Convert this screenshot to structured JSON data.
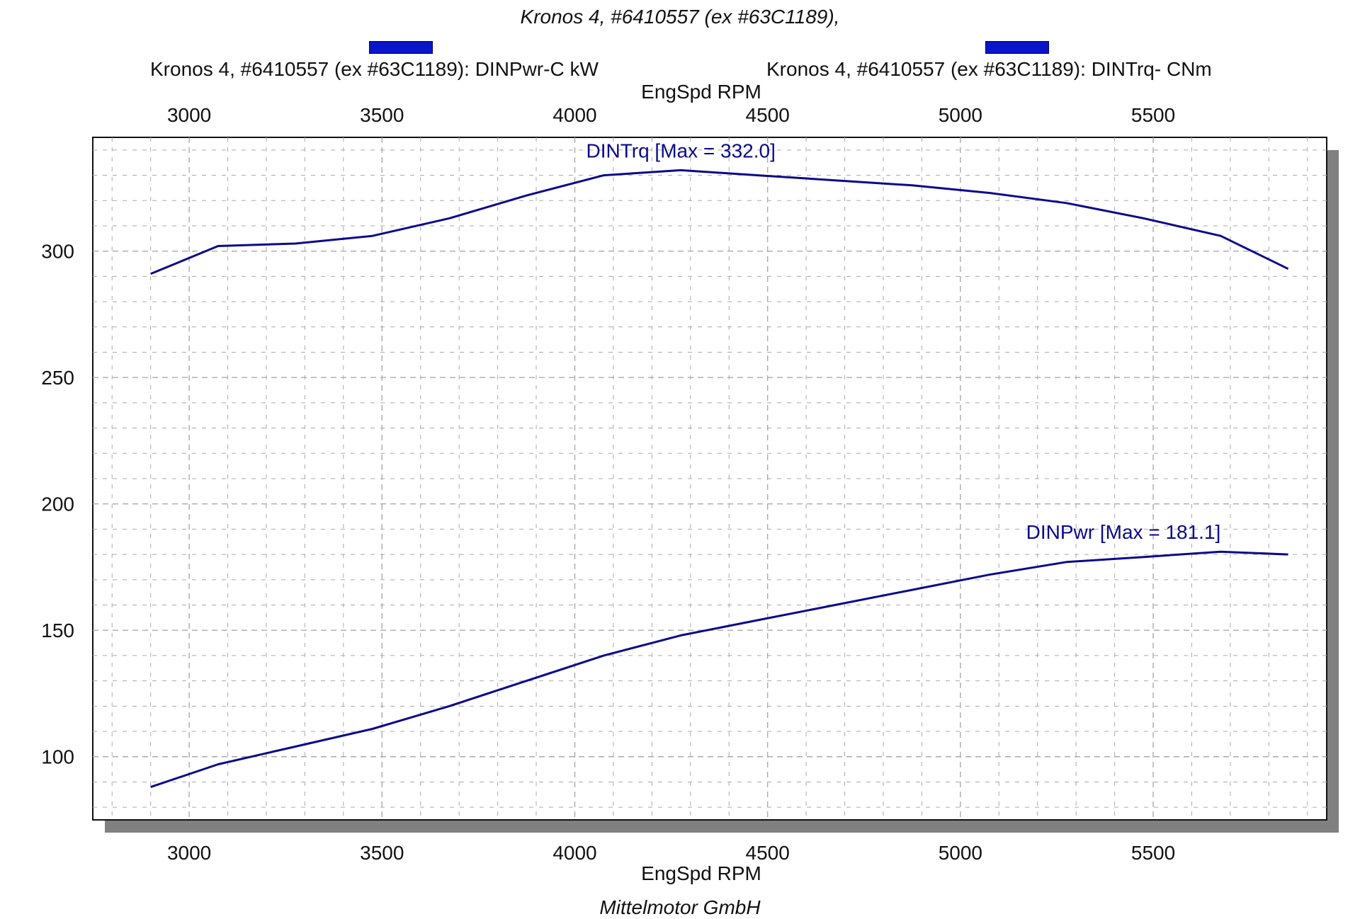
{
  "subtitle": "Kronos 4, #6410557 (ex #63C1189),",
  "footer": "Mittelmotor GmbH",
  "colors": {
    "series": "#0a0a8c",
    "legend": "#0a14c8",
    "grid": "#aaaaaa",
    "shadow": "#808080"
  },
  "chart_data": {
    "type": "line",
    "xlabel": "EngSpd  RPM",
    "x_ticks": [
      3000,
      3500,
      4000,
      4500,
      5000,
      5500
    ],
    "y_ticks": [
      100,
      150,
      200,
      250,
      300
    ],
    "xlim": [
      2750,
      5950
    ],
    "ylim": [
      75,
      345
    ],
    "grid": true,
    "legend_position": "top",
    "series": [
      {
        "name": "Kronos 4, #6410557 (ex #63C1189): DINPwr-C kW",
        "annotation": "DINPwr [Max = 181.1]",
        "x": [
          2900,
          3075,
          3275,
          3475,
          3675,
          3875,
          4075,
          4275,
          4475,
          4675,
          4875,
          5075,
          5275,
          5475,
          5675,
          5850
        ],
        "y": [
          88,
          97,
          104,
          111,
          120,
          130,
          140,
          148,
          154,
          160,
          166,
          172,
          177,
          179,
          181.1,
          180
        ]
      },
      {
        "name": "Kronos 4, #6410557 (ex #63C1189): DINTrq- CNm",
        "annotation": "DINTrq [Max = 332.0]",
        "x": [
          2900,
          3075,
          3275,
          3475,
          3675,
          3875,
          4075,
          4275,
          4475,
          4675,
          4875,
          5075,
          5275,
          5475,
          5675,
          5850
        ],
        "y": [
          291,
          302,
          303,
          306,
          313,
          322,
          330,
          332,
          330,
          328,
          326,
          323,
          319,
          313,
          306,
          293
        ]
      }
    ]
  }
}
